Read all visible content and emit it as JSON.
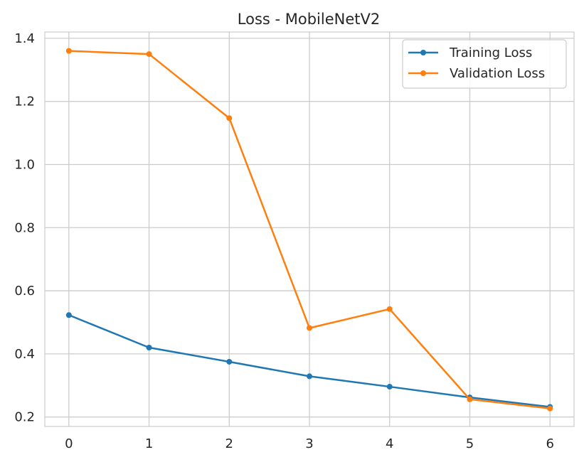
{
  "chart_data": {
    "type": "line",
    "title": "Loss - MobileNetV2",
    "xlabel": "",
    "ylabel": "",
    "x": [
      0,
      1,
      2,
      3,
      4,
      5,
      6
    ],
    "xlim": [
      -0.3,
      6.3
    ],
    "ylim": [
      0.17,
      1.42
    ],
    "xticks": [
      "0",
      "1",
      "2",
      "3",
      "4",
      "5",
      "6"
    ],
    "yticks": [
      "0.2",
      "0.4",
      "0.6",
      "0.8",
      "1.0",
      "1.2",
      "1.4"
    ],
    "grid": true,
    "legend_position": "top-right",
    "series": [
      {
        "name": "Training Loss",
        "color": "#1f77b4",
        "marker": "circle",
        "values": [
          0.523,
          0.42,
          0.375,
          0.329,
          0.296,
          0.262,
          0.232
        ]
      },
      {
        "name": "Validation Loss",
        "color": "#ff7f0e",
        "marker": "circle",
        "values": [
          1.36,
          1.35,
          1.147,
          0.482,
          0.542,
          0.256,
          0.227
        ]
      }
    ]
  }
}
